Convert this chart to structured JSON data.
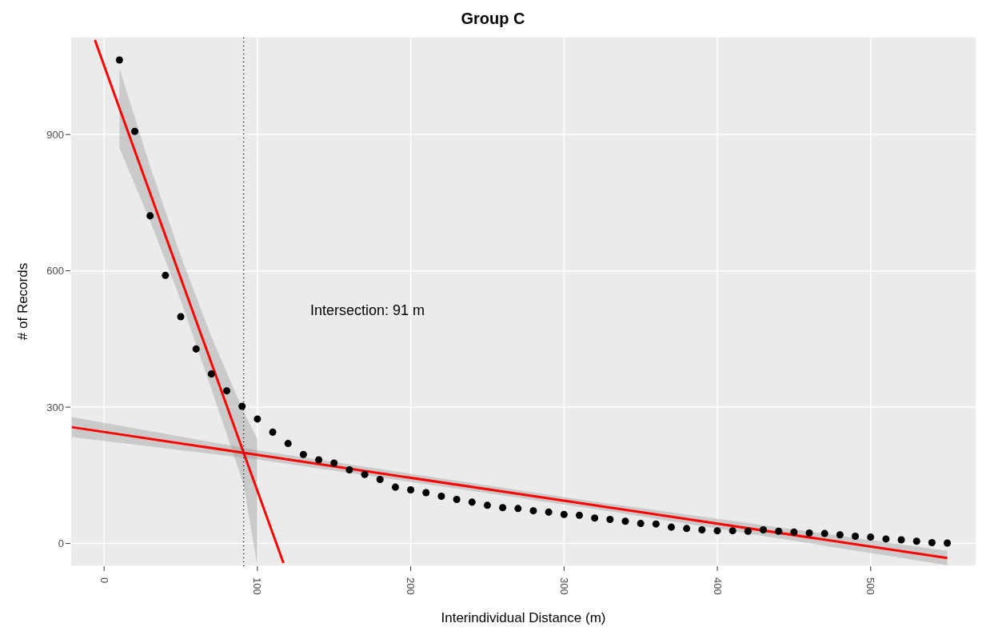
{
  "chart_data": {
    "type": "scatter",
    "title": "Group C",
    "xlabel": "Interindividual Distance (m)",
    "ylabel": "# of Records",
    "annotations": [
      "Intersection: 91 m"
    ],
    "x": [
      10,
      20,
      30,
      40,
      50,
      60,
      70,
      80,
      90,
      100,
      110,
      120,
      130,
      140,
      150,
      160,
      170,
      180,
      190,
      200,
      210,
      220,
      230,
      240,
      250,
      260,
      270,
      280,
      290,
      300,
      310,
      320,
      330,
      340,
      350,
      360,
      370,
      380,
      390,
      400,
      410,
      420,
      430,
      440,
      450,
      460,
      470,
      480,
      490,
      500,
      510,
      520,
      530,
      540,
      550
    ],
    "series": [
      {
        "marker": "circle",
        "color": "#000000",
        "values": [
          1064,
          907,
          721,
          590,
          499,
          428,
          373,
          336,
          302,
          274,
          245,
          220,
          196,
          184,
          177,
          162,
          152,
          141,
          124,
          118,
          112,
          104,
          97,
          91,
          84,
          79,
          77,
          72,
          69,
          64,
          62,
          56,
          53,
          49,
          44,
          43,
          36,
          33,
          30,
          28,
          28,
          27,
          30,
          27,
          25,
          23,
          22,
          19,
          16,
          14,
          10,
          8,
          5,
          2,
          1
        ]
      },
      {
        "type": "line",
        "marker": "none",
        "color": "#ff0000",
        "x": [
          -6,
          10,
          30,
          50,
          70,
          91,
          100,
          117
        ],
        "values": [
          1108,
          958,
          771,
          584,
          397,
          200,
          116,
          -43
        ],
        "lower": [
          null,
          870,
          710,
          535,
          340,
          130,
          -50,
          null
        ],
        "upper": [
          null,
          1046,
          830,
          633,
          455,
          290,
          230,
          null
        ]
      },
      {
        "type": "line",
        "marker": "none",
        "color": "#ff0000",
        "x": [
          -21,
          100,
          320,
          550
        ],
        "values": [
          256,
          195,
          84,
          -32
        ],
        "lower": [
          234,
          185,
          76,
          -48
        ],
        "upper": [
          278,
          205,
          92,
          -16
        ]
      }
    ],
    "ref_lines": [
      {
        "axis": "x",
        "value": 91,
        "color": "#000000",
        "line_style": "dotted"
      }
    ],
    "xlim": [
      -22,
      569
    ],
    "xticks": [
      0,
      100,
      200,
      300,
      400,
      500
    ],
    "ylim": [
      -50,
      1115
    ],
    "yticks": [
      0,
      300,
      600,
      900
    ],
    "grid": true
  }
}
